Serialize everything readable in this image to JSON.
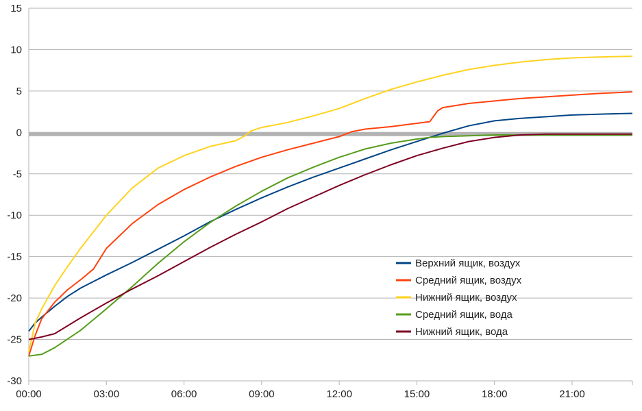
{
  "chart_data": {
    "type": "line",
    "title": "",
    "xlabel": "",
    "ylabel": "",
    "xlim": [
      0,
      23.33
    ],
    "ylim": [
      -30,
      15
    ],
    "x_ticks": [
      0,
      3,
      6,
      9,
      12,
      15,
      18,
      21
    ],
    "x_tick_labels": [
      "00:00",
      "03:00",
      "06:00",
      "09:00",
      "12:00",
      "15:00",
      "18:00",
      "21:00"
    ],
    "y_ticks": [
      -30,
      -25,
      -20,
      -15,
      -10,
      -5,
      0,
      5,
      10,
      15
    ],
    "y_tick_labels": [
      "-30",
      "-25",
      "-20",
      "-15",
      "-10",
      "-5",
      "0",
      "5",
      "10",
      "15"
    ],
    "grid": "horizontal",
    "reference_line": {
      "y": -0.2,
      "color": "#b3b3b3"
    },
    "legend_position": "lower-right",
    "series": [
      {
        "name": "Верхний ящик, воздух",
        "color": "#004586",
        "x": [
          0,
          0.25,
          0.5,
          1,
          1.5,
          2,
          3,
          4,
          5,
          6,
          7,
          8,
          9,
          10,
          11,
          12,
          13,
          14,
          15,
          15.5,
          16,
          17,
          18,
          19,
          20,
          21,
          22,
          23.33
        ],
        "y": [
          -24,
          -23,
          -22.3,
          -21,
          -19.8,
          -18.8,
          -17.2,
          -15.7,
          -14.1,
          -12.5,
          -10.8,
          -9.3,
          -7.9,
          -6.6,
          -5.4,
          -4.3,
          -3.2,
          -2.1,
          -1.1,
          -0.6,
          -0.1,
          0.8,
          1.4,
          1.7,
          1.9,
          2.1,
          2.2,
          2.3
        ]
      },
      {
        "name": "Средний ящик, воздух",
        "color": "#ff420e",
        "x": [
          0,
          0.25,
          0.5,
          1,
          1.5,
          2,
          2.5,
          3,
          4,
          5,
          6,
          7,
          8,
          9,
          10,
          11,
          12,
          12.5,
          13,
          14,
          15,
          15.5,
          15.8,
          16,
          17,
          18,
          19,
          20,
          21,
          22,
          23.33
        ],
        "y": [
          -27,
          -24.5,
          -22.5,
          -20.5,
          -19,
          -17.8,
          -16.5,
          -14,
          -11,
          -8.7,
          -6.9,
          -5.4,
          -4.1,
          -3.0,
          -2.1,
          -1.3,
          -0.5,
          0.1,
          0.4,
          0.7,
          1.1,
          1.3,
          2.6,
          3.0,
          3.5,
          3.8,
          4.1,
          4.3,
          4.5,
          4.7,
          4.9
        ]
      },
      {
        "name": "Нижний ящик, воздух",
        "color": "#ffd320",
        "x": [
          0,
          0.25,
          0.5,
          1,
          1.5,
          2,
          3,
          4,
          5,
          6,
          7,
          8,
          8.3,
          8.6,
          9,
          10,
          11,
          12,
          13,
          14,
          15,
          16,
          17,
          18,
          19,
          20,
          21,
          22,
          23.33
        ],
        "y": [
          -26.5,
          -23,
          -21.3,
          -18.5,
          -16.2,
          -14,
          -10,
          -6.7,
          -4.3,
          -2.8,
          -1.7,
          -1.0,
          -0.5,
          0.2,
          0.6,
          1.2,
          2.0,
          2.9,
          4.1,
          5.2,
          6.1,
          6.9,
          7.6,
          8.1,
          8.5,
          8.8,
          9.0,
          9.1,
          9.2
        ]
      },
      {
        "name": "Средний ящик, вода",
        "color": "#579d1c",
        "x": [
          0,
          0.5,
          1,
          2,
          3,
          4,
          5,
          6,
          7,
          8,
          9,
          10,
          11,
          12,
          13,
          14,
          15,
          15.5,
          16,
          17,
          18,
          19,
          20,
          21,
          22,
          23.33
        ],
        "y": [
          -27,
          -26.8,
          -26,
          -23.9,
          -21.3,
          -18.6,
          -15.8,
          -13.2,
          -10.9,
          -8.9,
          -7.1,
          -5.5,
          -4.2,
          -3.0,
          -2.0,
          -1.3,
          -0.8,
          -0.6,
          -0.5,
          -0.4,
          -0.3,
          -0.3,
          -0.3,
          -0.3,
          -0.3,
          -0.3
        ]
      },
      {
        "name": "Нижний ящик, вода",
        "color": "#7e0021",
        "x": [
          0,
          0.5,
          1,
          2,
          3,
          4,
          5,
          6,
          7,
          8,
          9,
          10,
          11,
          12,
          13,
          14,
          15,
          16,
          17,
          18,
          19,
          20,
          21,
          22,
          23.33
        ],
        "y": [
          -25,
          -24.7,
          -24.3,
          -22.4,
          -20.6,
          -18.9,
          -17.3,
          -15.6,
          -13.9,
          -12.3,
          -10.8,
          -9.2,
          -7.8,
          -6.4,
          -5.1,
          -3.9,
          -2.8,
          -1.9,
          -1.1,
          -0.6,
          -0.3,
          -0.2,
          -0.2,
          -0.2,
          -0.2
        ]
      }
    ]
  }
}
